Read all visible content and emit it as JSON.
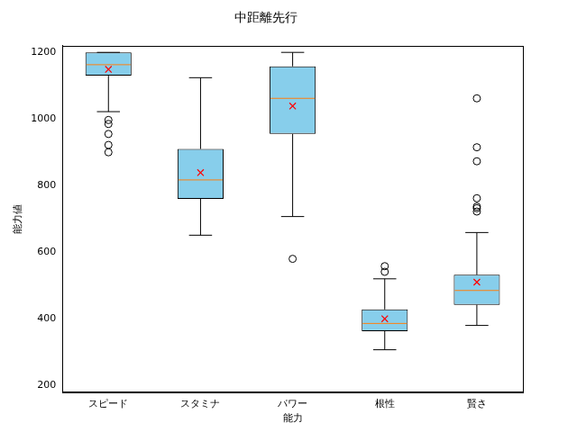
{
  "chart_data": {
    "type": "box",
    "title": "中距離先行",
    "x_label": "能力",
    "y_label": "能力値",
    "categories": [
      "スピード",
      "スタミナ",
      "パワー",
      "根性",
      "賢さ"
    ],
    "boxes": [
      {
        "whislo": 1022,
        "q1": 1130,
        "med": 1163,
        "q3": 1200,
        "whishi": 1200,
        "mean": 1149,
        "fliers": [
          997,
          985,
          955,
          922,
          900
        ]
      },
      {
        "whislo": 651,
        "q1": 760,
        "med": 817,
        "q3": 910,
        "whishi": 1124,
        "mean": 839,
        "fliers": []
      },
      {
        "whislo": 707,
        "q1": 955,
        "med": 1062,
        "q3": 1158,
        "whishi": 1200,
        "mean": 1039,
        "fliers": [
          580
        ]
      },
      {
        "whislo": 307,
        "q1": 363,
        "med": 386,
        "q3": 428,
        "whishi": 520,
        "mean": 400,
        "fliers": [
          558,
          541
        ]
      },
      {
        "whislo": 380,
        "q1": 442,
        "med": 485,
        "q3": 532,
        "whishi": 659,
        "mean": 510,
        "fliers": [
          1062,
          915,
          873,
          762,
          737,
          732,
          722
        ]
      }
    ],
    "color": "#87ceeb",
    "ylim": [
      180,
      1220
    ],
    "yticks": [
      200,
      400,
      600,
      800,
      1000,
      1200
    ],
    "grid": false
  }
}
